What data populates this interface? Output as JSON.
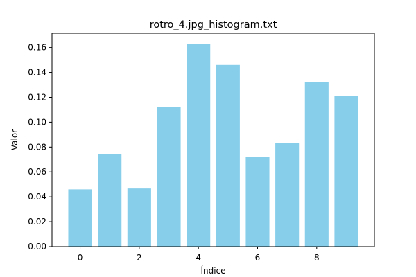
{
  "chart_data": {
    "type": "bar",
    "title": "rotro_4.jpg_histogram.txt",
    "xlabel": "Índice",
    "ylabel": "Valor",
    "categories": [
      0,
      1,
      2,
      3,
      4,
      5,
      6,
      7,
      8,
      9
    ],
    "values": [
      0.046,
      0.0745,
      0.0467,
      0.112,
      0.163,
      0.146,
      0.072,
      0.0833,
      0.132,
      0.121
    ],
    "xlim": [
      -0.95,
      9.95
    ],
    "ylim": [
      0,
      0.1715
    ],
    "xticks": [
      0,
      2,
      4,
      6,
      8
    ],
    "xtick_labels": [
      "0",
      "2",
      "4",
      "6",
      "8"
    ],
    "yticks": [
      0,
      0.02,
      0.04,
      0.06,
      0.08,
      0.1,
      0.12,
      0.14,
      0.16
    ],
    "ytick_labels": [
      "0.00",
      "0.02",
      "0.04",
      "0.06",
      "0.08",
      "0.10",
      "0.12",
      "0.14",
      "0.16"
    ],
    "bar_color": "#87CEEB",
    "grid": false,
    "legend": "none"
  }
}
